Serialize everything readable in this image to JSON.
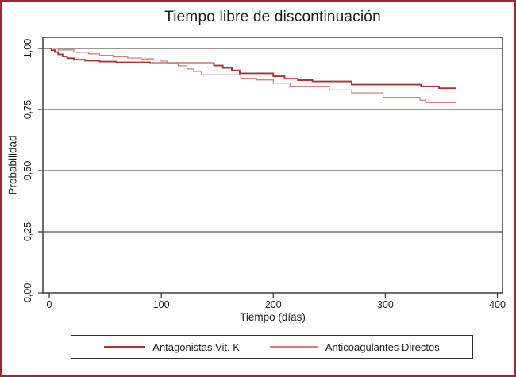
{
  "page": {
    "border_color": "#a32638",
    "background": "#ffffff"
  },
  "chart_data": {
    "type": "line",
    "subtype": "kaplan-meier-step",
    "title": "Tiempo libre de discontinuación",
    "xlabel": "Tiempo (días)",
    "ylabel": "Probabilidad",
    "xlim": [
      0,
      400
    ],
    "ylim": [
      0.0,
      1.0
    ],
    "grid": "horizontal",
    "legend_position": "bottom-center",
    "xticks": [
      {
        "value": 0,
        "label": "0"
      },
      {
        "value": 100,
        "label": "100"
      },
      {
        "value": 200,
        "label": "200"
      },
      {
        "value": 300,
        "label": "300"
      },
      {
        "value": 400,
        "label": "400"
      }
    ],
    "yticks": [
      {
        "value": 1.0,
        "label": "1,00"
      },
      {
        "value": 0.75,
        "label": "0,75"
      },
      {
        "value": 0.5,
        "label": "0,50"
      },
      {
        "value": 0.25,
        "label": "0,25"
      },
      {
        "value": 0.0,
        "label": "0,00"
      }
    ],
    "series": [
      {
        "name": "Antagonistas Vit. K",
        "color": "#a83236",
        "line_width": 1.9,
        "points": [
          [
            0,
            1.0
          ],
          [
            2,
            0.993
          ],
          [
            5,
            0.985
          ],
          [
            8,
            0.976
          ],
          [
            12,
            0.968
          ],
          [
            16,
            0.96
          ],
          [
            22,
            0.954
          ],
          [
            32,
            0.95
          ],
          [
            45,
            0.946
          ],
          [
            60,
            0.943
          ],
          [
            90,
            0.94
          ],
          [
            147,
            0.93
          ],
          [
            155,
            0.92
          ],
          [
            163,
            0.91
          ],
          [
            170,
            0.898
          ],
          [
            200,
            0.886
          ],
          [
            210,
            0.876
          ],
          [
            222,
            0.87
          ],
          [
            235,
            0.865
          ],
          [
            270,
            0.852
          ],
          [
            332,
            0.844
          ],
          [
            348,
            0.837
          ],
          [
            363,
            0.837
          ]
        ]
      },
      {
        "name": "Anticoagulantes Directos",
        "color": "#d1817d",
        "line_width": 1.3,
        "points": [
          [
            0,
            1.0
          ],
          [
            8,
            0.994
          ],
          [
            22,
            0.984
          ],
          [
            35,
            0.978
          ],
          [
            45,
            0.972
          ],
          [
            57,
            0.966
          ],
          [
            70,
            0.961
          ],
          [
            82,
            0.957
          ],
          [
            93,
            0.953
          ],
          [
            100,
            0.948
          ],
          [
            105,
            0.937
          ],
          [
            115,
            0.929
          ],
          [
            123,
            0.916
          ],
          [
            129,
            0.906
          ],
          [
            136,
            0.892
          ],
          [
            171,
            0.878
          ],
          [
            185,
            0.871
          ],
          [
            200,
            0.858
          ],
          [
            215,
            0.845
          ],
          [
            250,
            0.83
          ],
          [
            270,
            0.818
          ],
          [
            298,
            0.8
          ],
          [
            331,
            0.788
          ],
          [
            336,
            0.778
          ],
          [
            363,
            0.776
          ]
        ]
      }
    ]
  }
}
